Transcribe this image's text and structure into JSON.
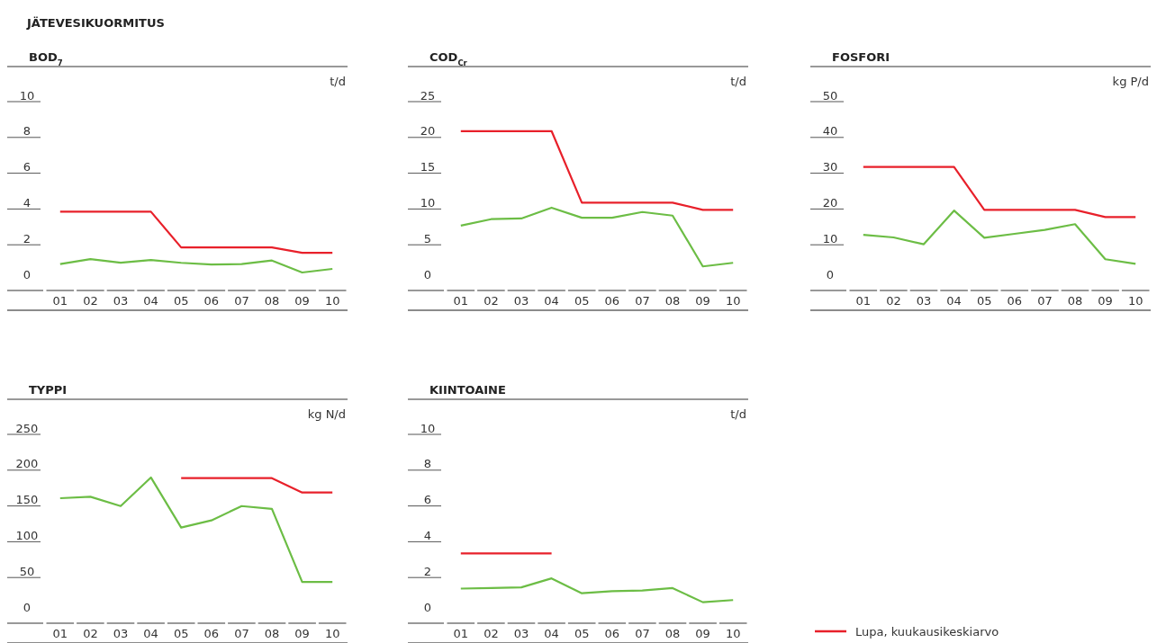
{
  "chart_data": [
    {
      "type": "line",
      "title": "BOD$_{7}$",
      "ylabel": "t/d",
      "annotations": [
        "JÄTEVESIKUORMITUS"
      ],
      "categories": [
        "01",
        "02",
        "03",
        "04",
        "05",
        "06",
        "07",
        "08",
        "09",
        "10"
      ],
      "ylim": [
        0,
        10
      ],
      "yticks": [
        0,
        2,
        4,
        6,
        8,
        10
      ],
      "series": [
        {
          "color": "#e8202a",
          "values": [
            3.5,
            3.5,
            3.5,
            3.5,
            1.5,
            1.5,
            1.5,
            1.5,
            1.2,
            1.2
          ]
        },
        {
          "color": "#6cbd45",
          "values": [
            0.57,
            0.85,
            0.65,
            0.8,
            0.64,
            0.55,
            0.57,
            0.77,
            0.1,
            0.3
          ]
        }
      ]
    },
    {
      "type": "line",
      "title": "COD$_{Cr}$",
      "ylabel": "t/d",
      "categories": [
        "01",
        "02",
        "03",
        "04",
        "05",
        "06",
        "07",
        "08",
        "09",
        "10"
      ],
      "ylim": [
        0,
        25
      ],
      "yticks": [
        0,
        5,
        10,
        15,
        20,
        25
      ],
      "series": [
        {
          "color": "#e8202a",
          "values": [
            20,
            20,
            20,
            20,
            10,
            10,
            10,
            10,
            9,
            9
          ]
        },
        {
          "color": "#6cbd45",
          "values": [
            6.8,
            7.7,
            7.8,
            9.3,
            7.9,
            7.9,
            8.7,
            8.2,
            1.1,
            1.6
          ]
        }
      ]
    },
    {
      "type": "line",
      "title": "FOSFORI",
      "ylabel": "kg P/d",
      "categories": [
        "01",
        "02",
        "03",
        "04",
        "05",
        "06",
        "07",
        "08",
        "09",
        "10"
      ],
      "ylim": [
        0,
        50
      ],
      "yticks": [
        0,
        10,
        20,
        30,
        40,
        50
      ],
      "series": [
        {
          "color": "#e8202a",
          "values": [
            30,
            30,
            30,
            30,
            18,
            18,
            18,
            18,
            16,
            16
          ]
        },
        {
          "color": "#6cbd45",
          "values": [
            11,
            10.3,
            8.4,
            17.8,
            10.2,
            11.3,
            12.4,
            14,
            4.2,
            2.9
          ]
        }
      ]
    },
    {
      "type": "line",
      "title": "TYPPI",
      "ylabel": "kg N/d",
      "categories": [
        "01",
        "02",
        "03",
        "04",
        "05",
        "06",
        "07",
        "08",
        "09",
        "10"
      ],
      "ylim": [
        0,
        250
      ],
      "yticks": [
        0,
        50,
        100,
        150,
        200,
        250
      ],
      "series": [
        {
          "color": "#e8202a",
          "values": [
            null,
            null,
            null,
            null,
            180,
            180,
            180,
            180,
            160,
            160
          ]
        },
        {
          "color": "#6cbd45",
          "values": [
            152,
            154,
            141,
            181,
            111,
            121,
            141,
            137,
            35,
            35
          ]
        }
      ]
    },
    {
      "type": "line",
      "title": "KIINTOAINE",
      "ylabel": "t/d",
      "categories": [
        "01",
        "02",
        "03",
        "04",
        "05",
        "06",
        "07",
        "08",
        "09",
        "10"
      ],
      "ylim": [
        0,
        10
      ],
      "yticks": [
        0,
        2,
        4,
        6,
        8,
        10
      ],
      "legend": "bottom right",
      "series": [
        {
          "name": "Lupa, kuukausikeskiarvo",
          "color": "#e8202a",
          "values": [
            3,
            3,
            3,
            3,
            null,
            null,
            null,
            null,
            null,
            null
          ]
        },
        {
          "color": "#6cbd45",
          "values": [
            1.03,
            1.06,
            1.1,
            1.6,
            0.77,
            0.89,
            0.92,
            1.06,
            0.27,
            0.39
          ]
        }
      ]
    }
  ]
}
